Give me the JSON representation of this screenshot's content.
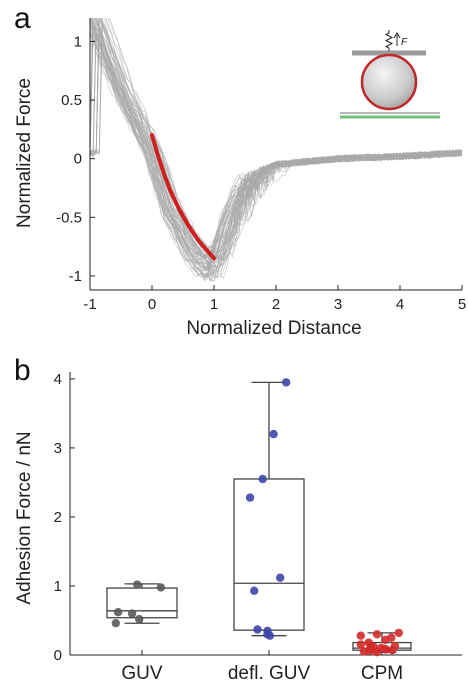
{
  "chart_data": [
    {
      "type": "line",
      "panel_label": "a",
      "xlabel": "Normalized Distance",
      "ylabel": "Normalized Force",
      "xlim": [
        -1,
        5
      ],
      "ylim": [
        -1.12,
        1.2
      ],
      "xticks": [
        -1,
        0,
        1,
        2,
        3,
        4,
        5
      ],
      "yticks": [
        -1,
        -0.5,
        0,
        0.5,
        1
      ],
      "colors": {
        "traces": "#a9a9a9",
        "fit": "#cc1f1f",
        "axis": "#222222"
      },
      "fit_curve": {
        "x": [
          0,
          0.1,
          0.2,
          0.3,
          0.4,
          0.5,
          0.6,
          0.7,
          0.8,
          0.9,
          1.0
        ],
        "y": [
          0.2,
          0.02,
          -0.14,
          -0.28,
          -0.39,
          -0.49,
          -0.58,
          -0.66,
          -0.73,
          -0.79,
          -0.85
        ]
      },
      "mean_trace": {
        "x": [
          -1,
          -0.5,
          0,
          0.3,
          0.6,
          0.8,
          1.0,
          1.2,
          1.5,
          2,
          3,
          4,
          5
        ],
        "y": [
          1.3,
          0.6,
          0.05,
          -0.45,
          -0.75,
          -0.88,
          -0.95,
          -0.55,
          -0.15,
          -0.05,
          0.0,
          0.02,
          0.05
        ]
      },
      "inset": {
        "force_label": "F"
      }
    },
    {
      "type": "box",
      "panel_label": "b",
      "ylabel": "Adhesion Force / nN",
      "ylim": [
        0,
        4.1
      ],
      "yticks": [
        0,
        1,
        2,
        3,
        4
      ],
      "categories": [
        "GUV",
        "defl. GUV",
        "CPM"
      ],
      "boxes": [
        {
          "name": "GUV",
          "min": 0.46,
          "q1": 0.54,
          "median": 0.64,
          "q3": 0.97,
          "max": 1.03,
          "color": "#5a5a5a",
          "points": [
            0.46,
            0.52,
            0.6,
            0.62,
            0.98,
            1.02
          ]
        },
        {
          "name": "defl. GUV",
          "min": 0.28,
          "q1": 0.36,
          "median": 1.04,
          "q3": 2.55,
          "max": 3.95,
          "color": "#3d46a8",
          "points": [
            0.28,
            0.3,
            0.35,
            0.37,
            0.93,
            1.12,
            2.28,
            2.55,
            3.2,
            3.95
          ]
        },
        {
          "name": "CPM",
          "min": 0.04,
          "q1": 0.07,
          "median": 0.1,
          "q3": 0.18,
          "max": 0.32,
          "color": "#d42a2a",
          "points": [
            0.04,
            0.05,
            0.06,
            0.07,
            0.08,
            0.09,
            0.1,
            0.11,
            0.12,
            0.13,
            0.15,
            0.18,
            0.22,
            0.25,
            0.28,
            0.3,
            0.32
          ]
        }
      ]
    }
  ]
}
